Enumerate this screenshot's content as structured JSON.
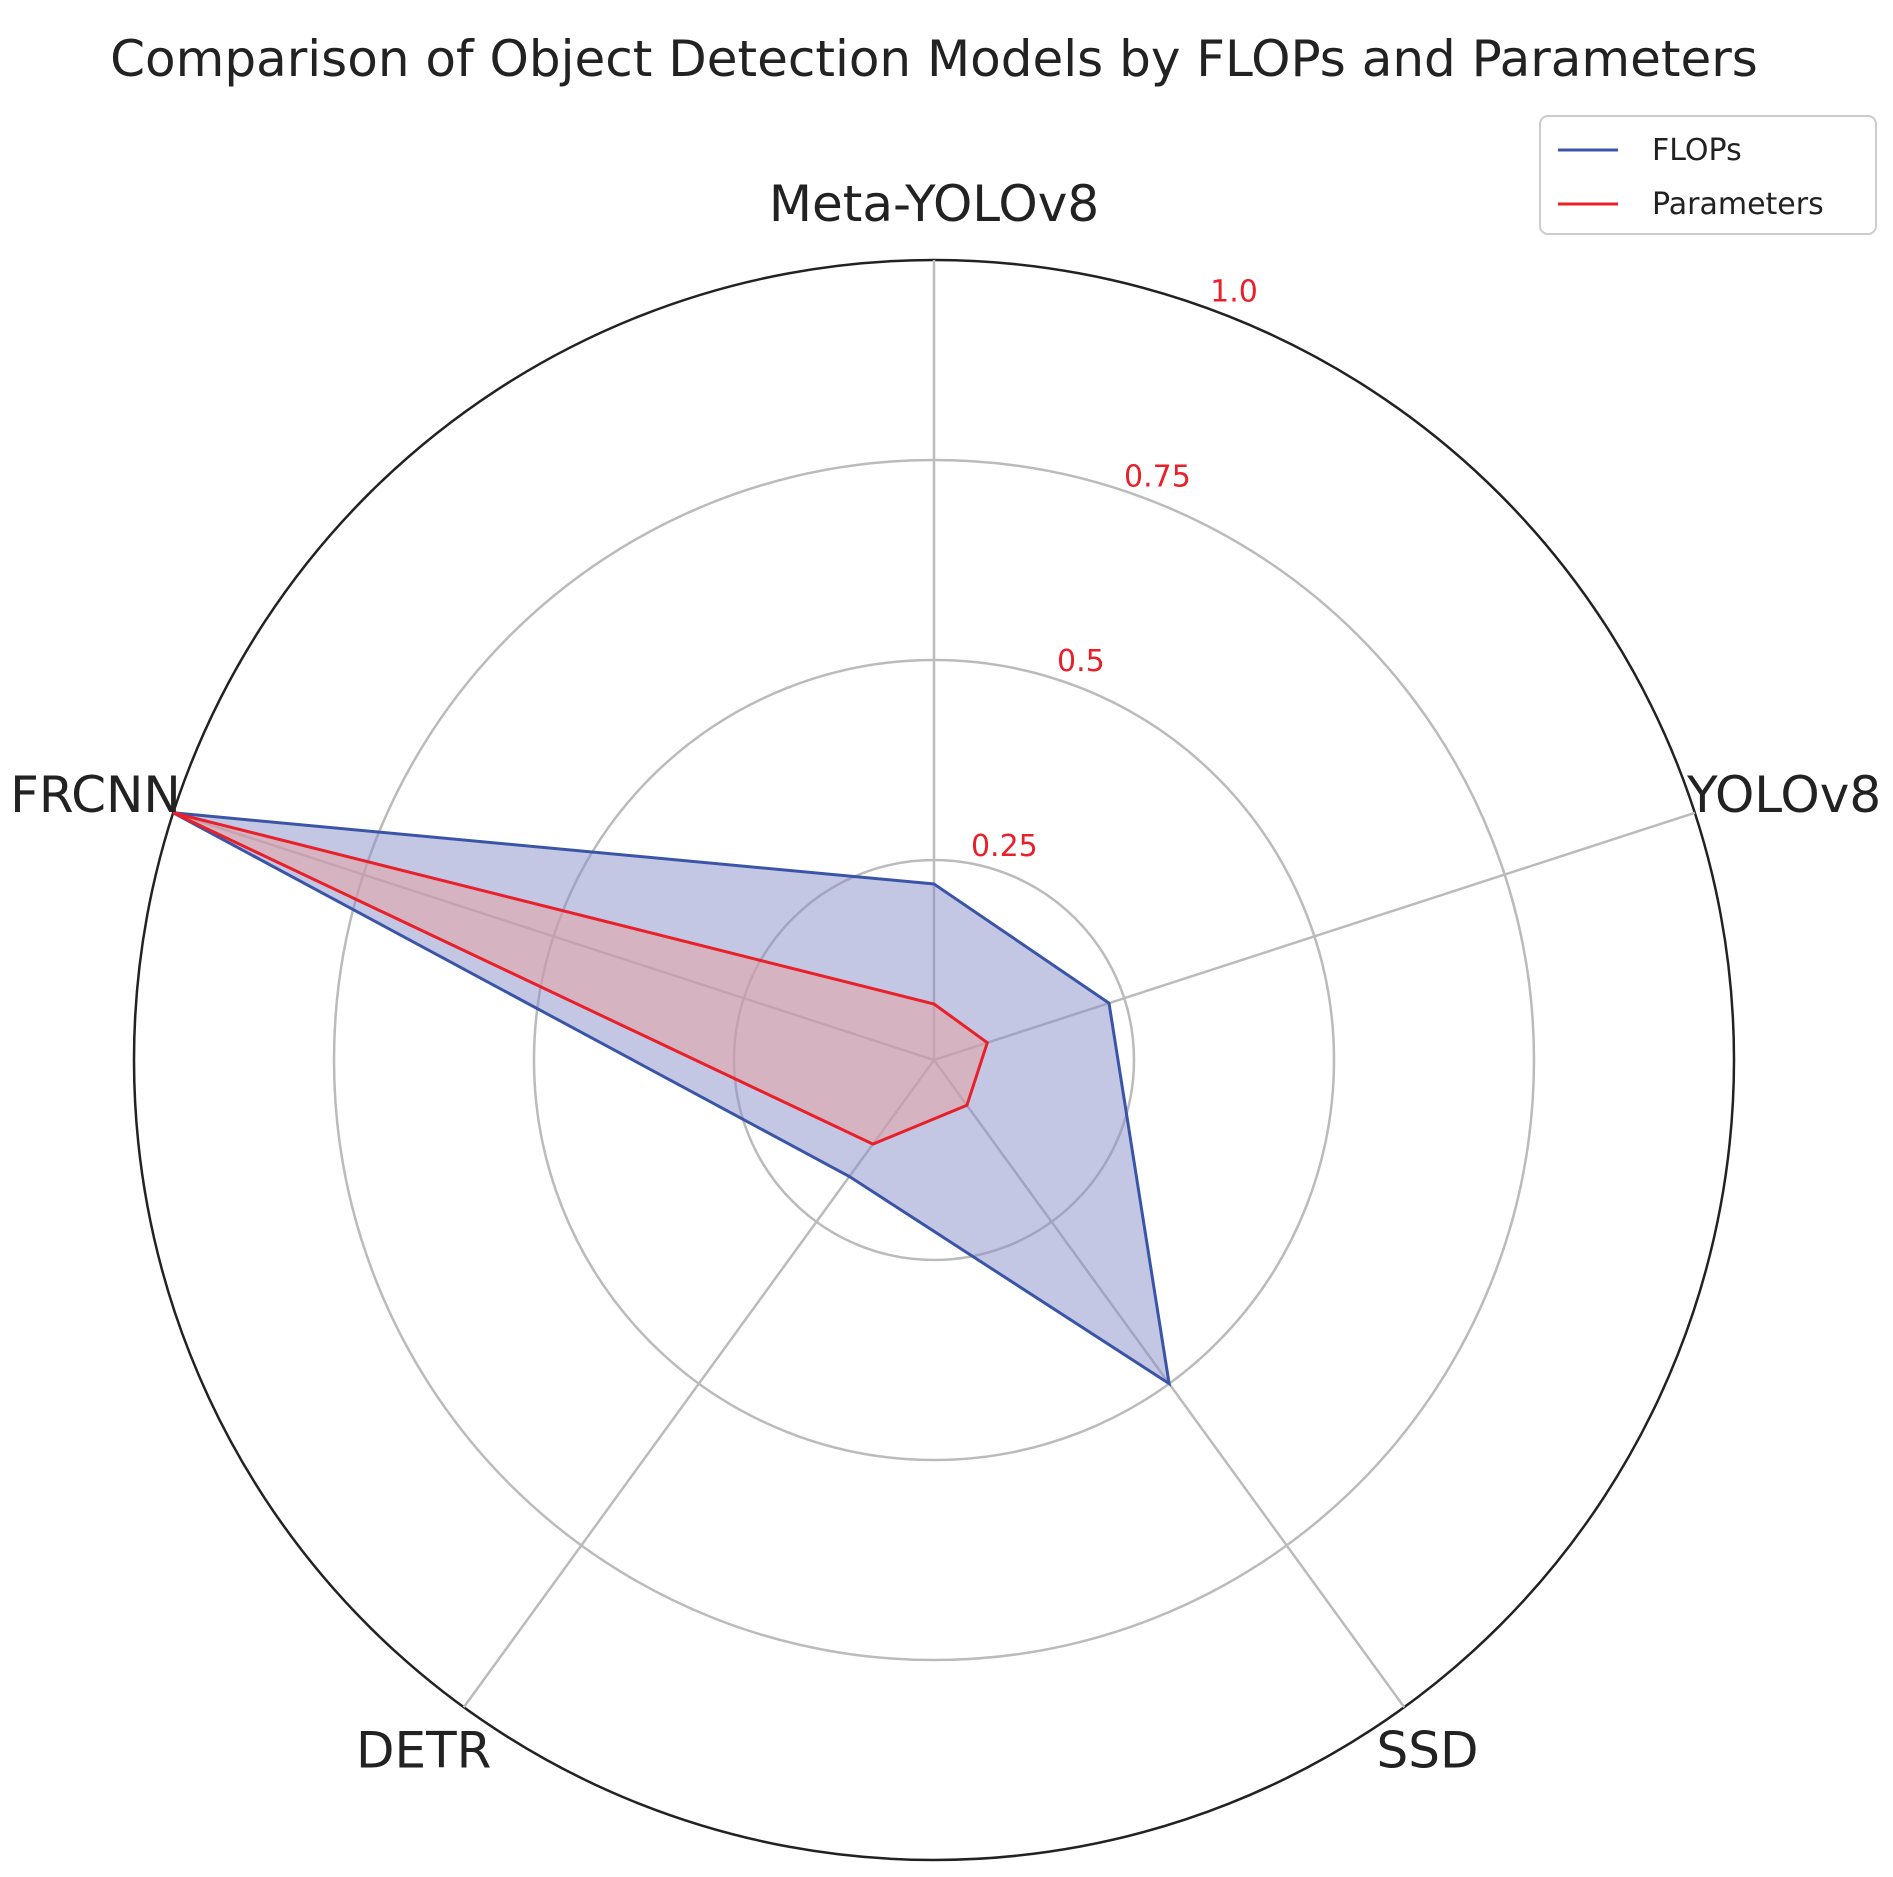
{
  "chart_data": {
    "type": "radar",
    "title": "Comparison of Object Detection Models by FLOPs and Parameters",
    "categories": [
      "Meta-YOLOv8",
      "YOLOv8",
      "SSD",
      "DETR",
      "FRCNN"
    ],
    "series": [
      {
        "name": "FLOPs",
        "values": [
          0.22,
          0.23,
          0.5,
          0.18,
          1.0
        ],
        "color": "#3a55a8",
        "fill": "#8a8fc8"
      },
      {
        "name": "Parameters",
        "values": [
          0.07,
          0.07,
          0.07,
          0.13,
          1.0
        ],
        "color": "#e8202a",
        "fill": "#e8a0a0"
      }
    ],
    "radial_ticks": [
      "0.25",
      "0.5",
      "0.75",
      "1.0"
    ],
    "radial_tick_values": [
      0.25,
      0.5,
      0.75,
      1.0
    ],
    "rlim": [
      0,
      1.0
    ],
    "tick_color": "#e8202a",
    "grid": true,
    "grid_color": "#bbbbbb",
    "legend_position": "top-right"
  }
}
